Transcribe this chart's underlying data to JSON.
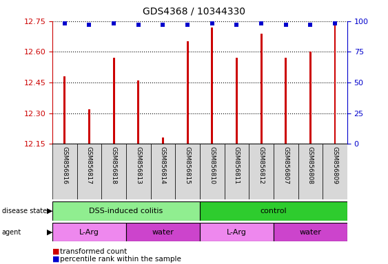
{
  "title": "GDS4368 / 10344330",
  "samples": [
    "GSM856816",
    "GSM856817",
    "GSM856818",
    "GSM856813",
    "GSM856814",
    "GSM856815",
    "GSM856810",
    "GSM856811",
    "GSM856812",
    "GSM856807",
    "GSM856808",
    "GSM856809"
  ],
  "transformed_counts": [
    12.48,
    12.32,
    12.57,
    12.46,
    12.18,
    12.65,
    12.72,
    12.57,
    12.69,
    12.57,
    12.6,
    12.75
  ],
  "percentile_ranks": [
    98,
    97,
    98,
    97,
    97,
    97,
    98,
    97,
    98,
    97,
    97,
    98
  ],
  "bar_color": "#cc0000",
  "dot_color": "#0000cc",
  "ylim_left": [
    12.15,
    12.75
  ],
  "yticks_left": [
    12.15,
    12.3,
    12.45,
    12.6,
    12.75
  ],
  "yticks_right": [
    0,
    25,
    50,
    75,
    100
  ],
  "grid_color": "#000000",
  "disease_state_groups": [
    {
      "label": "DSS-induced colitis",
      "start": 0,
      "end": 6,
      "color": "#90ee90"
    },
    {
      "label": "control",
      "start": 6,
      "end": 12,
      "color": "#2ecc2e"
    }
  ],
  "agent_groups": [
    {
      "label": "L-Arg",
      "start": 0,
      "end": 3,
      "color": "#ee88ee"
    },
    {
      "label": "water",
      "start": 3,
      "end": 6,
      "color": "#cc44cc"
    },
    {
      "label": "L-Arg",
      "start": 6,
      "end": 9,
      "color": "#ee88ee"
    },
    {
      "label": "water",
      "start": 9,
      "end": 12,
      "color": "#cc44cc"
    }
  ],
  "left_axis_color": "#cc0000",
  "right_axis_color": "#0000cc",
  "tick_fontsize": 8,
  "sample_label_fontsize": 6.5,
  "bar_width": 0.08
}
